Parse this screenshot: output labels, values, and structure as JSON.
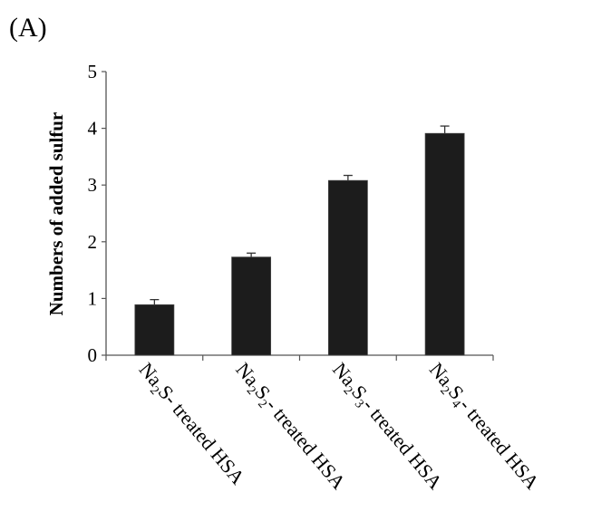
{
  "panel_label": "(A)",
  "chart_data": {
    "type": "bar",
    "title": "",
    "xlabel": "",
    "ylabel": "Numbers of added sulfur",
    "ylim": [
      0,
      5
    ],
    "yticks": [
      "0",
      "1",
      "2",
      "3",
      "4",
      "5"
    ],
    "grid": false,
    "legend": "none",
    "bar_color": "#1c1c1c",
    "categories": [
      [
        {
          "t": "Na"
        },
        {
          "t": "2",
          "sub": true
        },
        {
          "t": "S"
        },
        {
          "t": "- treated HSA"
        }
      ],
      [
        {
          "t": "Na"
        },
        {
          "t": "2",
          "sub": true
        },
        {
          "t": "S"
        },
        {
          "t": "2",
          "sub": true
        },
        {
          "t": "- treated HSA"
        }
      ],
      [
        {
          "t": "Na"
        },
        {
          "t": "2",
          "sub": true
        },
        {
          "t": "S"
        },
        {
          "t": "3",
          "sub": true
        },
        {
          "t": "- treated HSA"
        }
      ],
      [
        {
          "t": "Na"
        },
        {
          "t": "2",
          "sub": true
        },
        {
          "t": "S"
        },
        {
          "t": "4",
          "sub": true
        },
        {
          "t": "- treated HSA"
        }
      ]
    ],
    "values": [
      0.89,
      1.73,
      3.08,
      3.91
    ],
    "errors": [
      0.09,
      0.07,
      0.09,
      0.13
    ]
  }
}
